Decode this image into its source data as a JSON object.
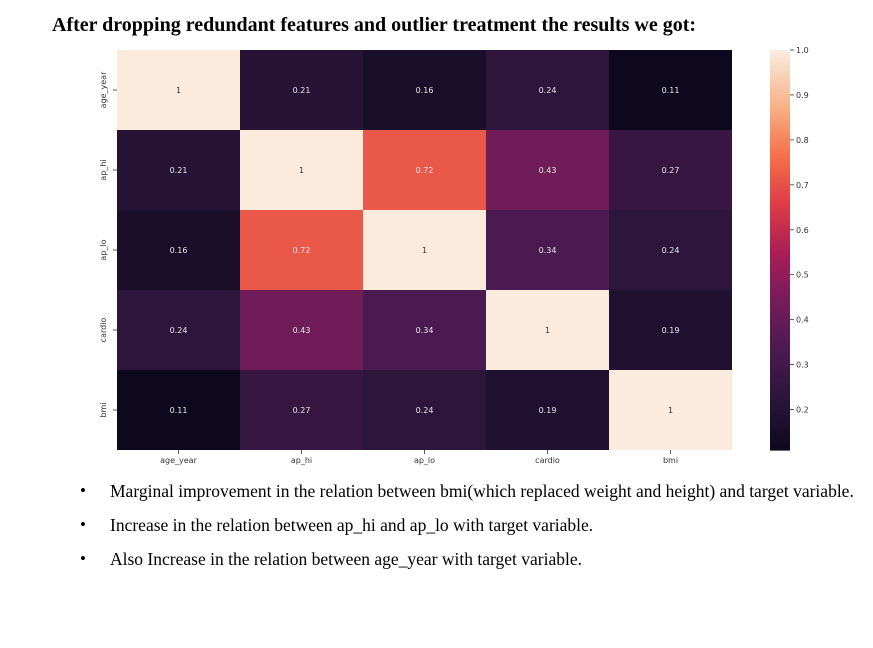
{
  "document": {
    "heading": "After dropping redundant features and outlier treatment the results we got:",
    "bullets": [
      "Marginal improvement in the relation between bmi(which replaced weight and height)  and target variable.",
      "Increase in the relation between ap_hi and ap_lo with target variable.",
      "Also Increase in the relation between age_year with target variable."
    ]
  },
  "chart_data": {
    "type": "heatmap",
    "row_labels": [
      "age_year",
      "ap_hi",
      "ap_lo",
      "cardio",
      "bmi"
    ],
    "col_labels": [
      "age_year",
      "ap_hi",
      "ap_lo",
      "cardio",
      "bmi"
    ],
    "values": [
      [
        1,
        0.21,
        0.16,
        0.24,
        0.11
      ],
      [
        0.21,
        1,
        0.72,
        0.43,
        0.27
      ],
      [
        0.16,
        0.72,
        1,
        0.34,
        0.24
      ],
      [
        0.24,
        0.43,
        0.34,
        1,
        0.19
      ],
      [
        0.11,
        0.27,
        0.24,
        0.19,
        1
      ]
    ],
    "colorbar": {
      "min": 0.11,
      "max": 1.0,
      "ticks": [
        0.2,
        0.3,
        0.4,
        0.5,
        0.6,
        0.7,
        0.8,
        0.9,
        1.0
      ],
      "tick_labels": [
        "0.2",
        "0.3",
        "0.4",
        "0.5",
        "0.6",
        "0.7",
        "0.8",
        "0.9",
        "1.0"
      ],
      "colormap": "rocket"
    },
    "annotations": true
  }
}
